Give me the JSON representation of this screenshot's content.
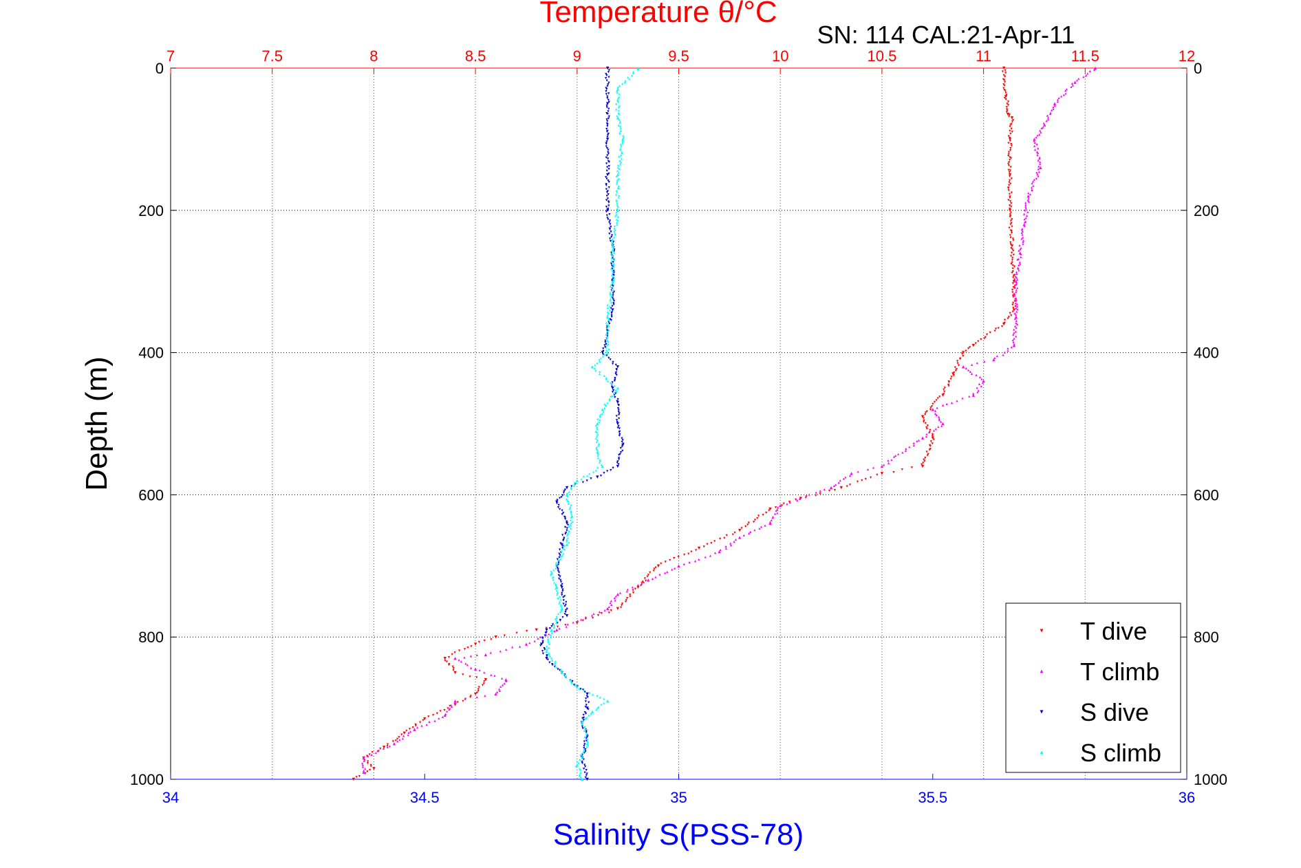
{
  "chart_data": {
    "type": "scatter",
    "title": "Temperature θ/°C",
    "annotation": "SN: 114  CAL:21-Apr-11",
    "xlabel_bottom": "Salinity S(PSS-78)",
    "xlabel_top": "Temperature θ/°C",
    "ylabel": "Depth (m)",
    "xlim_bottom": [
      34,
      36
    ],
    "xlim_top": [
      7,
      12
    ],
    "ylim": [
      0,
      1000
    ],
    "y_reversed": true,
    "xticks_bottom": [
      "34",
      "34.5",
      "35",
      "35.5",
      "36"
    ],
    "xticks_top": [
      "7",
      "7.5",
      "8",
      "8.5",
      "9",
      "9.5",
      "10",
      "10.5",
      "11",
      "11.5",
      "12"
    ],
    "yticks": [
      "0",
      "200",
      "400",
      "600",
      "800",
      "1000"
    ],
    "grid": true,
    "legend_position": "bottom-right",
    "colors": {
      "temperature_axis": "#ff0000",
      "salinity_axis": "#0000ff",
      "t_dive": "#ff0000",
      "t_climb": "#ff00ff",
      "s_dive": "#0000cc",
      "s_climb": "#00ffff"
    },
    "series": [
      {
        "name": "T dive",
        "axis": "top",
        "marker": "triangle-down",
        "color": "#ff0000",
        "points": [
          [
            11.1,
            0
          ],
          [
            11.11,
            40
          ],
          [
            11.12,
            65
          ],
          [
            11.14,
            70
          ],
          [
            11.13,
            100
          ],
          [
            11.13,
            150
          ],
          [
            11.13,
            200
          ],
          [
            11.14,
            250
          ],
          [
            11.15,
            300
          ],
          [
            11.15,
            340
          ],
          [
            11.1,
            360
          ],
          [
            10.95,
            390
          ],
          [
            10.9,
            400
          ],
          [
            10.85,
            430
          ],
          [
            10.8,
            460
          ],
          [
            10.7,
            490
          ],
          [
            10.75,
            520
          ],
          [
            10.7,
            560
          ],
          [
            10.5,
            570
          ],
          [
            10.3,
            590
          ],
          [
            10.1,
            605
          ],
          [
            9.95,
            620
          ],
          [
            9.8,
            650
          ],
          [
            9.6,
            675
          ],
          [
            9.4,
            700
          ],
          [
            9.3,
            730
          ],
          [
            9.2,
            760
          ],
          [
            9.0,
            780
          ],
          [
            8.8,
            790
          ],
          [
            8.6,
            800
          ],
          [
            8.5,
            810
          ],
          [
            8.35,
            830
          ],
          [
            8.4,
            850
          ],
          [
            8.55,
            860
          ],
          [
            8.5,
            880
          ],
          [
            8.4,
            895
          ],
          [
            8.25,
            915
          ],
          [
            8.15,
            935
          ],
          [
            8.05,
            955
          ],
          [
            7.95,
            970
          ],
          [
            8.0,
            985
          ],
          [
            7.9,
            1000
          ]
        ]
      },
      {
        "name": "T climb",
        "axis": "top",
        "marker": "triangle-up",
        "color": "#ff00ff",
        "points": [
          [
            11.55,
            0
          ],
          [
            11.45,
            20
          ],
          [
            11.35,
            50
          ],
          [
            11.3,
            80
          ],
          [
            11.25,
            100
          ],
          [
            11.28,
            140
          ],
          [
            11.22,
            180
          ],
          [
            11.2,
            220
          ],
          [
            11.18,
            260
          ],
          [
            11.16,
            300
          ],
          [
            11.16,
            350
          ],
          [
            11.15,
            390
          ],
          [
            11.05,
            410
          ],
          [
            10.9,
            420
          ],
          [
            11.0,
            440
          ],
          [
            10.95,
            460
          ],
          [
            10.75,
            480
          ],
          [
            10.8,
            500
          ],
          [
            10.7,
            520
          ],
          [
            10.5,
            560
          ],
          [
            10.35,
            570
          ],
          [
            10.25,
            590
          ],
          [
            10.0,
            615
          ],
          [
            9.95,
            640
          ],
          [
            9.8,
            660
          ],
          [
            9.7,
            680
          ],
          [
            9.5,
            700
          ],
          [
            9.35,
            720
          ],
          [
            9.2,
            740
          ],
          [
            9.15,
            760
          ],
          [
            8.9,
            790
          ],
          [
            8.75,
            810
          ],
          [
            8.55,
            825
          ],
          [
            8.4,
            830
          ],
          [
            8.5,
            845
          ],
          [
            8.65,
            860
          ],
          [
            8.6,
            880
          ],
          [
            8.4,
            890
          ],
          [
            8.35,
            910
          ],
          [
            8.2,
            930
          ],
          [
            8.1,
            950
          ],
          [
            7.95,
            970
          ],
          [
            7.95,
            990
          ]
        ]
      },
      {
        "name": "S dive",
        "axis": "bottom",
        "marker": "triangle-down",
        "color": "#0000cc",
        "points": [
          [
            34.86,
            0
          ],
          [
            34.86,
            50
          ],
          [
            34.86,
            100
          ],
          [
            34.86,
            150
          ],
          [
            34.86,
            200
          ],
          [
            34.87,
            250
          ],
          [
            34.87,
            300
          ],
          [
            34.87,
            340
          ],
          [
            34.86,
            370
          ],
          [
            34.85,
            400
          ],
          [
            34.88,
            420
          ],
          [
            34.87,
            450
          ],
          [
            34.88,
            470
          ],
          [
            34.88,
            500
          ],
          [
            34.89,
            530
          ],
          [
            34.88,
            560
          ],
          [
            34.84,
            575
          ],
          [
            34.78,
            590
          ],
          [
            34.76,
            610
          ],
          [
            34.78,
            640
          ],
          [
            34.77,
            670
          ],
          [
            34.76,
            700
          ],
          [
            34.77,
            730
          ],
          [
            34.78,
            770
          ],
          [
            34.74,
            790
          ],
          [
            34.73,
            810
          ],
          [
            34.74,
            830
          ],
          [
            34.77,
            850
          ],
          [
            34.8,
            870
          ],
          [
            34.82,
            880
          ],
          [
            34.82,
            900
          ],
          [
            34.81,
            920
          ],
          [
            34.82,
            940
          ],
          [
            34.81,
            970
          ],
          [
            34.82,
            1000
          ]
        ]
      },
      {
        "name": "S climb",
        "axis": "bottom",
        "marker": "triangle-up",
        "color": "#00ffff",
        "points": [
          [
            34.92,
            0
          ],
          [
            34.88,
            30
          ],
          [
            34.88,
            70
          ],
          [
            34.89,
            100
          ],
          [
            34.88,
            150
          ],
          [
            34.88,
            200
          ],
          [
            34.87,
            250
          ],
          [
            34.87,
            300
          ],
          [
            34.86,
            350
          ],
          [
            34.86,
            400
          ],
          [
            34.83,
            420
          ],
          [
            34.88,
            450
          ],
          [
            34.85,
            480
          ],
          [
            34.84,
            500
          ],
          [
            34.84,
            540
          ],
          [
            34.85,
            560
          ],
          [
            34.8,
            580
          ],
          [
            34.78,
            600
          ],
          [
            34.79,
            630
          ],
          [
            34.78,
            670
          ],
          [
            34.75,
            710
          ],
          [
            34.76,
            730
          ],
          [
            34.77,
            760
          ],
          [
            34.75,
            790
          ],
          [
            34.74,
            820
          ],
          [
            34.77,
            850
          ],
          [
            34.8,
            870
          ],
          [
            34.86,
            890
          ],
          [
            34.83,
            905
          ],
          [
            34.81,
            920
          ],
          [
            34.82,
            950
          ],
          [
            34.8,
            980
          ],
          [
            34.81,
            1000
          ]
        ]
      }
    ]
  }
}
